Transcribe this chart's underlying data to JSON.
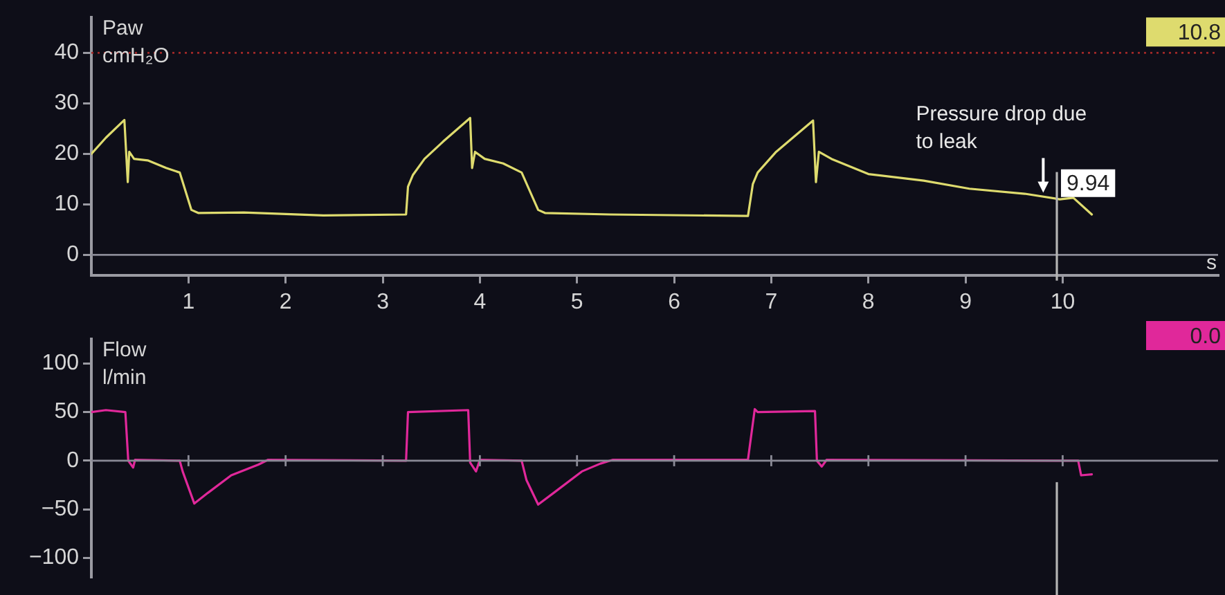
{
  "chart_data": [
    {
      "type": "line",
      "title": "Paw",
      "ylabel": "cmH₂O",
      "xlabel": "s",
      "xlim": [
        0,
        11.6
      ],
      "xticks": [
        1,
        2,
        3,
        4,
        5,
        6,
        7,
        8,
        9,
        10
      ],
      "ylim": [
        -4,
        47
      ],
      "yticks": [
        0,
        10,
        20,
        30,
        40
      ],
      "grid": false,
      "legend": false,
      "marker": "none",
      "line_style": "solid",
      "series": [
        {
          "color": "#dedb6e",
          "x": [
            0,
            0.15,
            0.34,
            0.375,
            0.39,
            0.44,
            0.58,
            0.77,
            0.91,
            1.03,
            1.1,
            1.57,
            2.39,
            3.24,
            3.26,
            3.31,
            3.43,
            3.62,
            3.9,
            3.92,
            3.95,
            4.05,
            4.24,
            4.43,
            4.6,
            4.67,
            5.34,
            6.76,
            6.81,
            6.86,
            7.05,
            7.43,
            7.46,
            7.49,
            7.62,
            8.0,
            8.57,
            9.04,
            9.61,
            9.97,
            10.11,
            10.3
          ],
          "values": [
            20,
            23.2,
            26.7,
            14.4,
            20.4,
            19,
            18.7,
            17.2,
            16.3,
            8.9,
            8.3,
            8.4,
            7.8,
            8,
            13.5,
            15.8,
            19,
            22.4,
            27.1,
            17.2,
            20.4,
            19,
            18.1,
            16.3,
            8.9,
            8.3,
            8,
            7.7,
            14,
            16.3,
            20.4,
            26.6,
            14.4,
            20.4,
            19,
            16,
            14.7,
            13.1,
            12.1,
            11,
            11.3,
            8
          ]
        }
      ],
      "ref_lines": [
        {
          "axis": "y",
          "value": 40,
          "color": "#a02828",
          "line_style": "dotted"
        },
        {
          "axis": "y",
          "value": 0,
          "color": "#8a8a96",
          "line_style": "solid"
        },
        {
          "axis": "x",
          "value": 9.94,
          "label": "9.94",
          "color": "#b4b4b4",
          "line_style": "solid"
        }
      ],
      "annotations": [
        {
          "text": "Pressure drop due to leak",
          "x": 9.8,
          "y": 11.5
        },
        "10.8"
      ]
    },
    {
      "type": "line",
      "title": "Flow",
      "ylabel": "l/min",
      "xlim": [
        0,
        11.6
      ],
      "xticks": [
        1,
        2,
        3,
        4,
        5,
        6,
        7,
        8,
        9,
        10
      ],
      "ylim": [
        -120,
        125
      ],
      "yticks": [
        -100,
        -50,
        0,
        50,
        100
      ],
      "tick_labels": "y",
      "grid": false,
      "legend": false,
      "marker": "none",
      "line_style": "solid",
      "series": [
        {
          "color": "#e0289a",
          "x": [
            0,
            0.15,
            0.35,
            0.38,
            0.43,
            0.45,
            0.91,
            0.94,
            1.06,
            1.2,
            1.44,
            1.72,
            1.82,
            3.24,
            3.26,
            3.88,
            3.9,
            3.96,
            4.0,
            4.43,
            4.48,
            4.6,
            4.76,
            5.05,
            5.24,
            5.37,
            6.76,
            6.83,
            6.86,
            7.45,
            7.47,
            7.52,
            7.57,
            9.97,
            10.16,
            10.19,
            10.3
          ],
          "values": [
            50,
            52,
            50,
            0,
            -7,
            1,
            0,
            -11,
            -44,
            -33,
            -15,
            -4,
            1,
            0,
            50,
            52,
            -2,
            -11,
            1,
            0,
            -20,
            -45,
            -33,
            -11,
            -3,
            1,
            1,
            53,
            50,
            51,
            0,
            -6,
            1,
            0,
            0,
            -15,
            -14
          ]
        }
      ],
      "ref_lines": [
        {
          "axis": "y",
          "value": 0,
          "color": "#8a8a96",
          "line_style": "solid"
        },
        {
          "axis": "x",
          "value": 9.94,
          "color": "#b4b4b4",
          "line_style": "solid"
        }
      ],
      "annotations": [
        "0.0"
      ]
    }
  ]
}
